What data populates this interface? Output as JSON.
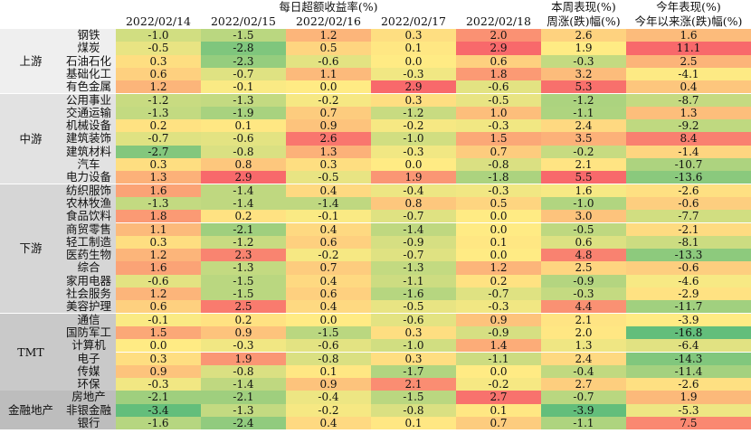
{
  "chart_data": {
    "type": "heatmap",
    "header": {
      "daily_title": "每日超额收益率(%)",
      "dates": [
        "2022/02/14",
        "2022/02/15",
        "2022/02/16",
        "2022/02/17",
        "2022/02/18"
      ],
      "week_title_line1": "本周表现(%)",
      "week_title_line2": "周涨(跌)幅(%)",
      "ytd_title_line1": "今年表现(%)",
      "ytd_title_line2": "今年以来涨(跌)幅(%)"
    },
    "groups": [
      {
        "name": "上游",
        "rows": [
          {
            "industry": "钢铁",
            "values": [
              "-1.0",
              "-1.5",
              "1.2",
              "0.3",
              "2.0"
            ],
            "week": "2.6",
            "ytd": "1.6"
          },
          {
            "industry": "煤炭",
            "values": [
              "-0.5",
              "-2.8",
              "0.5",
              "0.1",
              "2.9"
            ],
            "week": "1.9",
            "ytd": "11.1"
          },
          {
            "industry": "石油石化",
            "values": [
              "0.3",
              "-2.3",
              "-0.6",
              "0.0",
              "0.6"
            ],
            "week": "-0.3",
            "ytd": "2.5"
          },
          {
            "industry": "基础化工",
            "values": [
              "0.6",
              "-0.7",
              "1.1",
              "-0.3",
              "1.8"
            ],
            "week": "3.2",
            "ytd": "-4.1"
          },
          {
            "industry": "有色金属",
            "values": [
              "1.2",
              "-0.1",
              "0.0",
              "2.9",
              "-0.6"
            ],
            "week": "5.3",
            "ytd": "0.4"
          }
        ]
      },
      {
        "name": "中游",
        "rows": [
          {
            "industry": "公用事业",
            "values": [
              "-1.2",
              "-1.3",
              "-0.2",
              "0.3",
              "-0.5"
            ],
            "week": "-1.2",
            "ytd": "-8.7"
          },
          {
            "industry": "交通运输",
            "values": [
              "-1.3",
              "-1.9",
              "0.7",
              "-1.2",
              "1.0"
            ],
            "week": "-1.1",
            "ytd": "1.3"
          },
          {
            "industry": "机械设备",
            "values": [
              "0.2",
              "0.1",
              "0.9",
              "-0.2",
              "-0.3"
            ],
            "week": "2.4",
            "ytd": "-9.2"
          },
          {
            "industry": "建筑装饰",
            "values": [
              "-0.7",
              "-0.6",
              "2.6",
              "-1.0",
              "1.5"
            ],
            "week": "3.5",
            "ytd": "8.4"
          },
          {
            "industry": "建筑材料",
            "values": [
              "-2.7",
              "-0.8",
              "1.3",
              "-0.3",
              "0.7"
            ],
            "week": "-0.2",
            "ytd": "-1.4"
          },
          {
            "industry": "汽车",
            "values": [
              "0.3",
              "0.8",
              "0.3",
              "0.0",
              "-0.8"
            ],
            "week": "2.1",
            "ytd": "-10.7"
          },
          {
            "industry": "电力设备",
            "values": [
              "1.3",
              "2.9",
              "-0.5",
              "1.9",
              "-1.8"
            ],
            "week": "5.5",
            "ytd": "-13.6"
          }
        ]
      },
      {
        "name": "下游",
        "rows": [
          {
            "industry": "纺织服饰",
            "values": [
              "1.6",
              "-1.4",
              "0.4",
              "-0.4",
              "-0.3"
            ],
            "week": "1.6",
            "ytd": "-2.6"
          },
          {
            "industry": "农林牧渔",
            "values": [
              "-1.3",
              "-1.4",
              "-1.4",
              "0.8",
              "0.5"
            ],
            "week": "-1.0",
            "ytd": "-0.6"
          },
          {
            "industry": "食品饮料",
            "values": [
              "1.8",
              "0.2",
              "-0.1",
              "-0.7",
              "0.0"
            ],
            "week": "3.0",
            "ytd": "-7.7"
          },
          {
            "industry": "商贸零售",
            "values": [
              "1.1",
              "-2.1",
              "0.4",
              "-1.4",
              "0.0"
            ],
            "week": "-0.5",
            "ytd": "-2.1"
          },
          {
            "industry": "轻工制造",
            "values": [
              "0.3",
              "-1.2",
              "0.6",
              "-0.9",
              "0.1"
            ],
            "week": "0.6",
            "ytd": "-8.1"
          },
          {
            "industry": "医药生物",
            "values": [
              "1.2",
              "2.3",
              "-0.2",
              "-0.7",
              "0.0"
            ],
            "week": "4.8",
            "ytd": "-13.3"
          },
          {
            "industry": "综合",
            "values": [
              "1.6",
              "-1.3",
              "0.7",
              "-1.3",
              "1.2"
            ],
            "week": "2.5",
            "ytd": "-0.6"
          },
          {
            "industry": "家用电器",
            "values": [
              "-0.6",
              "-1.5",
              "0.4",
              "-1.1",
              "0.2"
            ],
            "week": "-0.9",
            "ytd": "-4.6"
          },
          {
            "industry": "社会服务",
            "values": [
              "1.2",
              "-1.5",
              "0.6",
              "-1.6",
              "-0.7"
            ],
            "week": "-0.3",
            "ytd": "-2.9"
          },
          {
            "industry": "美容护理",
            "values": [
              "0.6",
              "2.5",
              "0.4",
              "-0.5",
              "-0.3"
            ],
            "week": "4.4",
            "ytd": "-11.7"
          }
        ]
      },
      {
        "name": "TMT",
        "rows": [
          {
            "industry": "通信",
            "values": [
              "-0.1",
              "0.2",
              "0.0",
              "-0.6",
              "0.9"
            ],
            "week": "2.1",
            "ytd": "-3.9"
          },
          {
            "industry": "国防军工",
            "values": [
              "1.5",
              "0.9",
              "-1.5",
              "0.3",
              "-0.9"
            ],
            "week": "2.0",
            "ytd": "-16.8"
          },
          {
            "industry": "计算机",
            "values": [
              "0.0",
              "-0.3",
              "-0.6",
              "-1.0",
              "1.4"
            ],
            "week": "1.3",
            "ytd": "-6.4"
          },
          {
            "industry": "电子",
            "values": [
              "0.3",
              "1.9",
              "-0.8",
              "0.3",
              "-1.1"
            ],
            "week": "2.4",
            "ytd": "-14.3"
          },
          {
            "industry": "传媒",
            "values": [
              "0.9",
              "-0.8",
              "0.1",
              "-1.7",
              "0.0"
            ],
            "week": "-0.4",
            "ytd": "-11.4"
          },
          {
            "industry": "环保",
            "values": [
              "-0.3",
              "-1.4",
              "0.9",
              "2.1",
              "-0.2"
            ],
            "week": "2.7",
            "ytd": "-2.6"
          }
        ]
      },
      {
        "name": "金融地产",
        "rows": [
          {
            "industry": "房地产",
            "values": [
              "-2.1",
              "-2.1",
              "-0.4",
              "-1.5",
              "2.7"
            ],
            "week": "-0.7",
            "ytd": "1.9"
          },
          {
            "industry": "非银金融",
            "values": [
              "-3.4",
              "-1.3",
              "-0.2",
              "-0.8",
              "0.1"
            ],
            "week": "-3.9",
            "ytd": "-5.3"
          },
          {
            "industry": "银行",
            "values": [
              "-1.6",
              "-2.4",
              "0.4",
              "0.1",
              "0.7"
            ],
            "week": "-1.1",
            "ytd": "7.5"
          }
        ]
      }
    ],
    "colors": {
      "negative_max": "#63be7b",
      "neutral": "#ffeb84",
      "positive_max": "#f8696b",
      "group_bands": [
        "#efefef",
        "#e2e2e2",
        "#d6d6d6",
        "#c9c9c9",
        "#bdbdbd"
      ]
    }
  }
}
